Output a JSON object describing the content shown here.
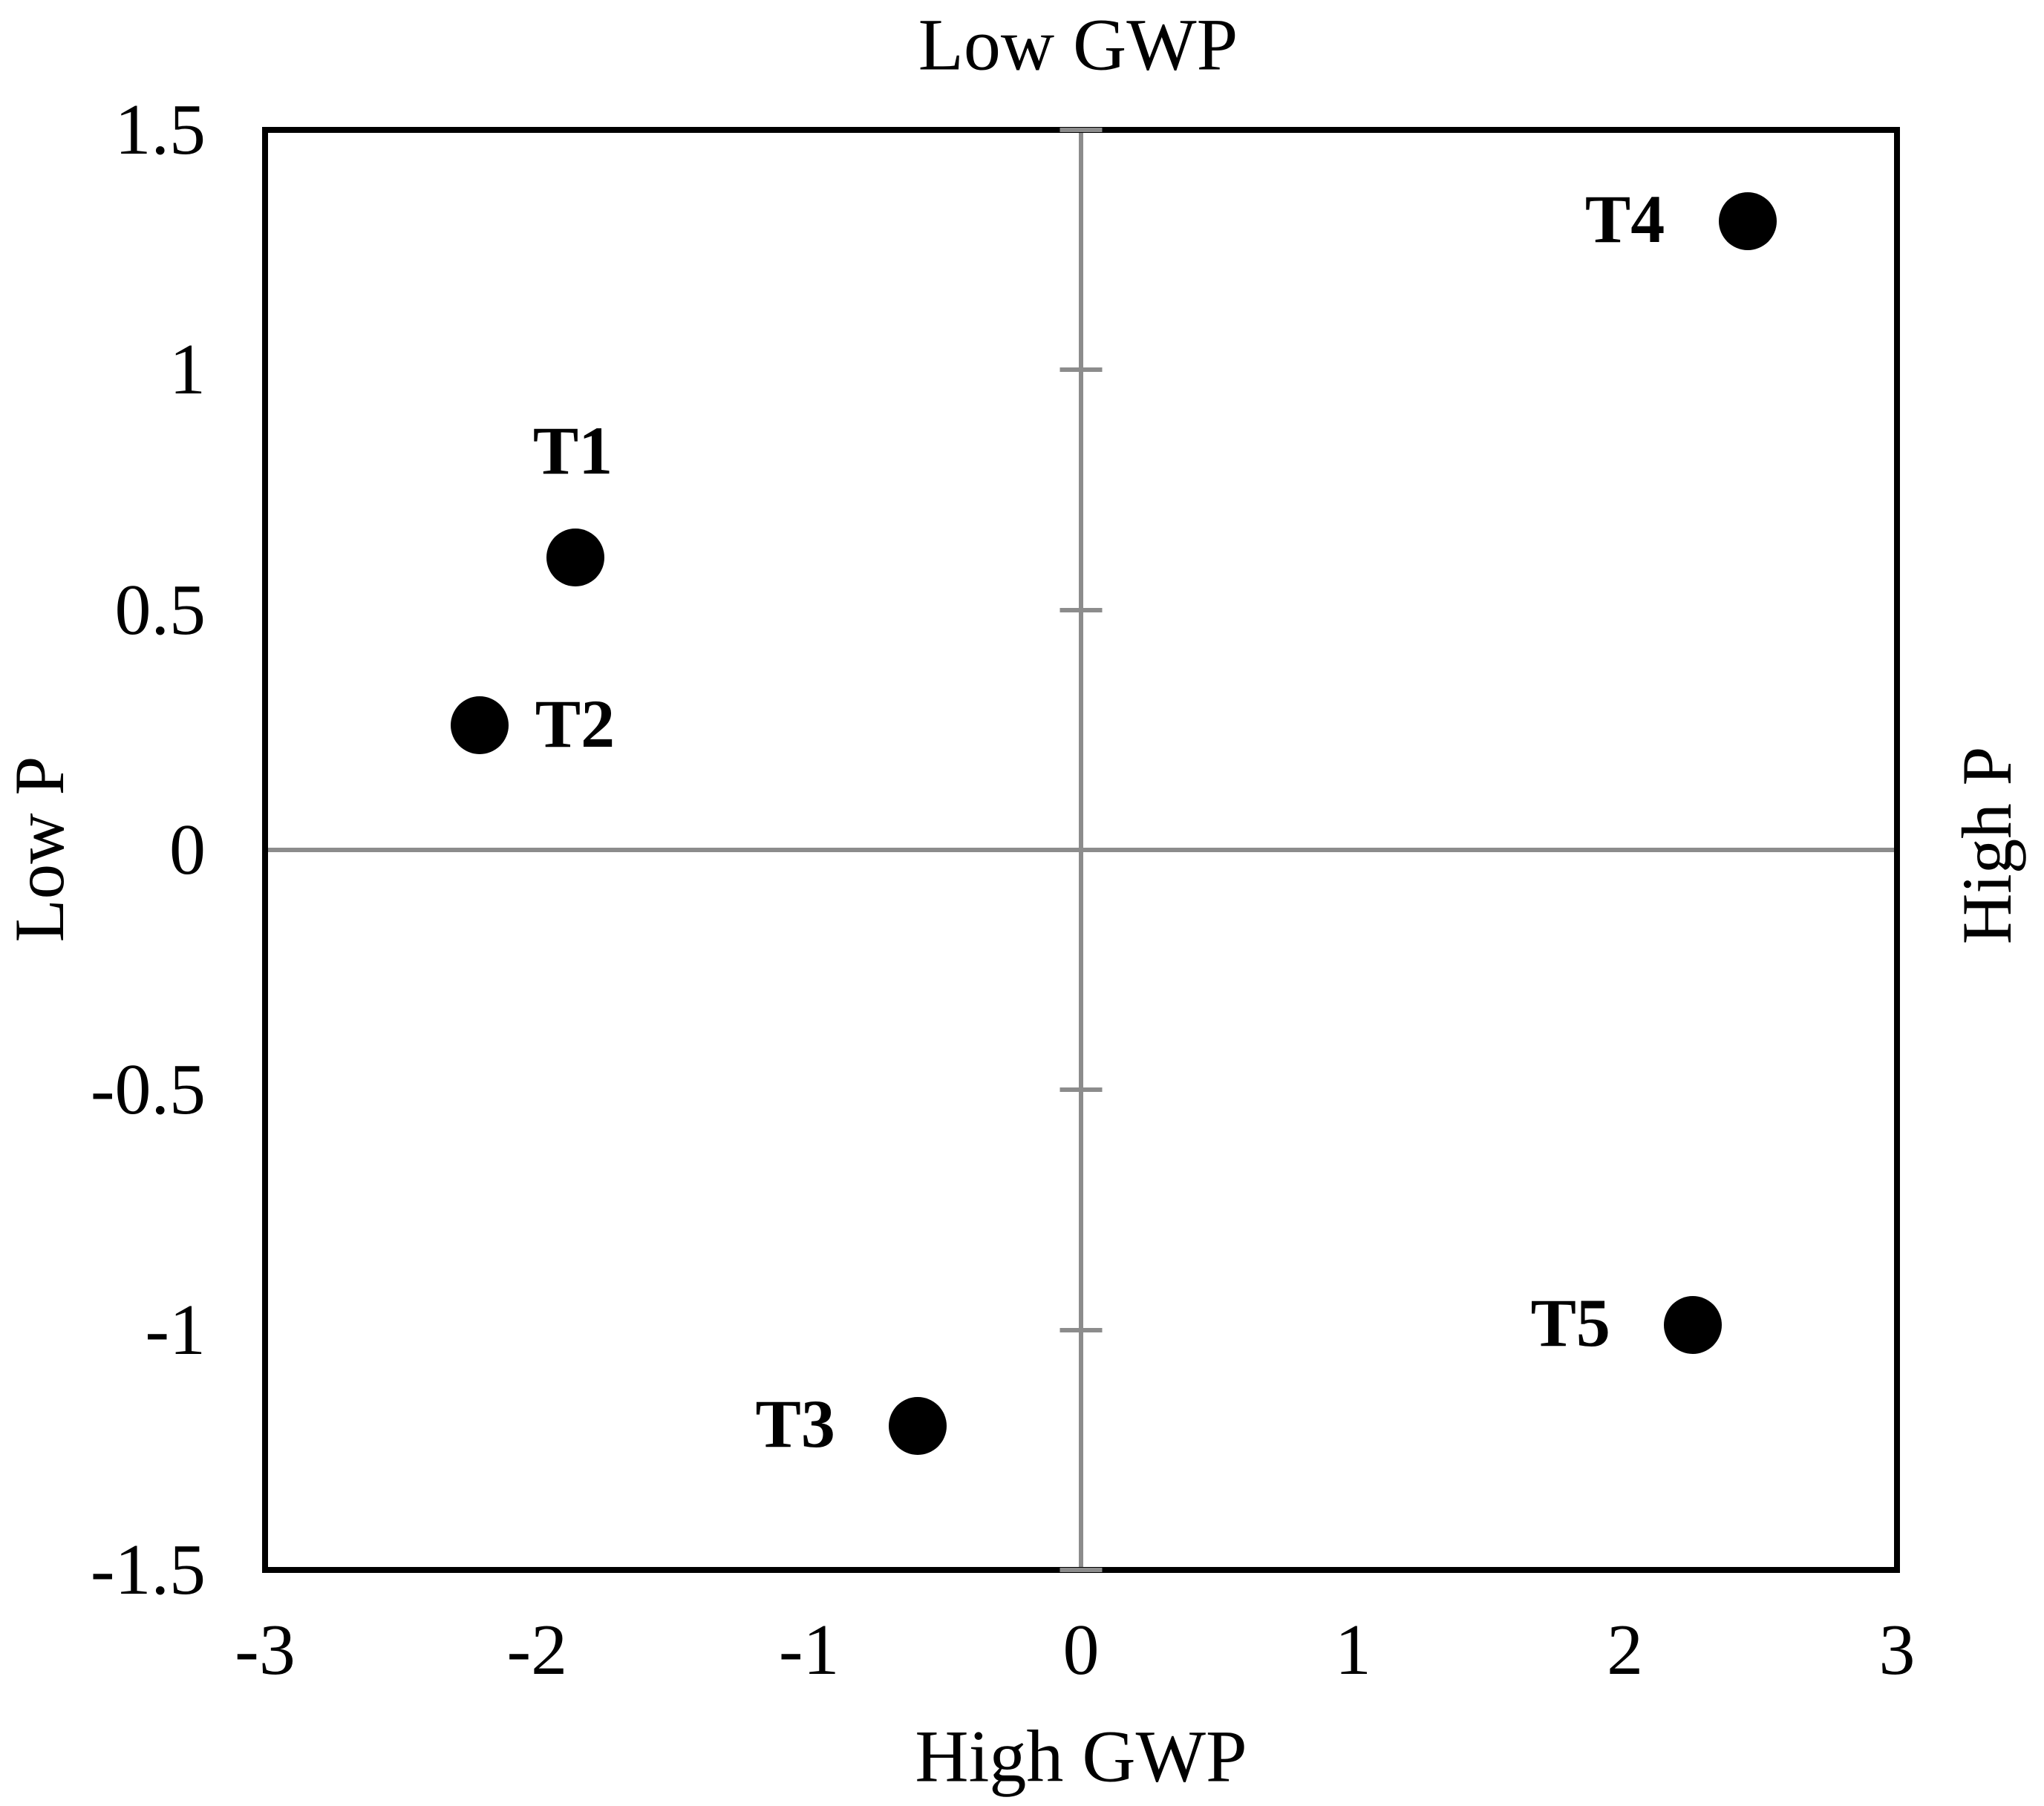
{
  "chart_data": {
    "type": "scatter",
    "title": "Low GWP",
    "xlabel": "High GWP",
    "ylabel_left": "Low P",
    "ylabel_right": "High P",
    "xlim": [
      -3,
      3
    ],
    "ylim": [
      -1.5,
      1.5
    ],
    "x_ticks": [
      -3,
      -2,
      -1,
      0,
      1,
      2,
      3
    ],
    "x_tick_labels": [
      "-3",
      "-2",
      "-1",
      "0",
      "1",
      "2",
      "3"
    ],
    "y_ticks": [
      1.5,
      1,
      0.5,
      0,
      -0.5,
      -1,
      -1.5
    ],
    "y_tick_labels": [
      "1.5",
      "1",
      "0.5",
      "0",
      "-0.5",
      "-1",
      "-1.5"
    ],
    "zero_line_ticks_y": [
      1.5,
      1,
      0.5,
      -0.5,
      -1,
      -1.5
    ],
    "grid": false,
    "legend": false,
    "marker_color": "#000000",
    "quadrant_line_color": "#8c8c8c",
    "points": [
      {
        "label": "T1",
        "x": -1.86,
        "y": 0.61,
        "label_pos": "above"
      },
      {
        "label": "T2",
        "x": -2.21,
        "y": 0.26,
        "label_pos": "right"
      },
      {
        "label": "T3",
        "x": -0.6,
        "y": -1.2,
        "label_pos": "left"
      },
      {
        "label": "T4",
        "x": 2.45,
        "y": 1.31,
        "label_pos": "left"
      },
      {
        "label": "T5",
        "x": 2.25,
        "y": -0.99,
        "label_pos": "left"
      }
    ]
  }
}
